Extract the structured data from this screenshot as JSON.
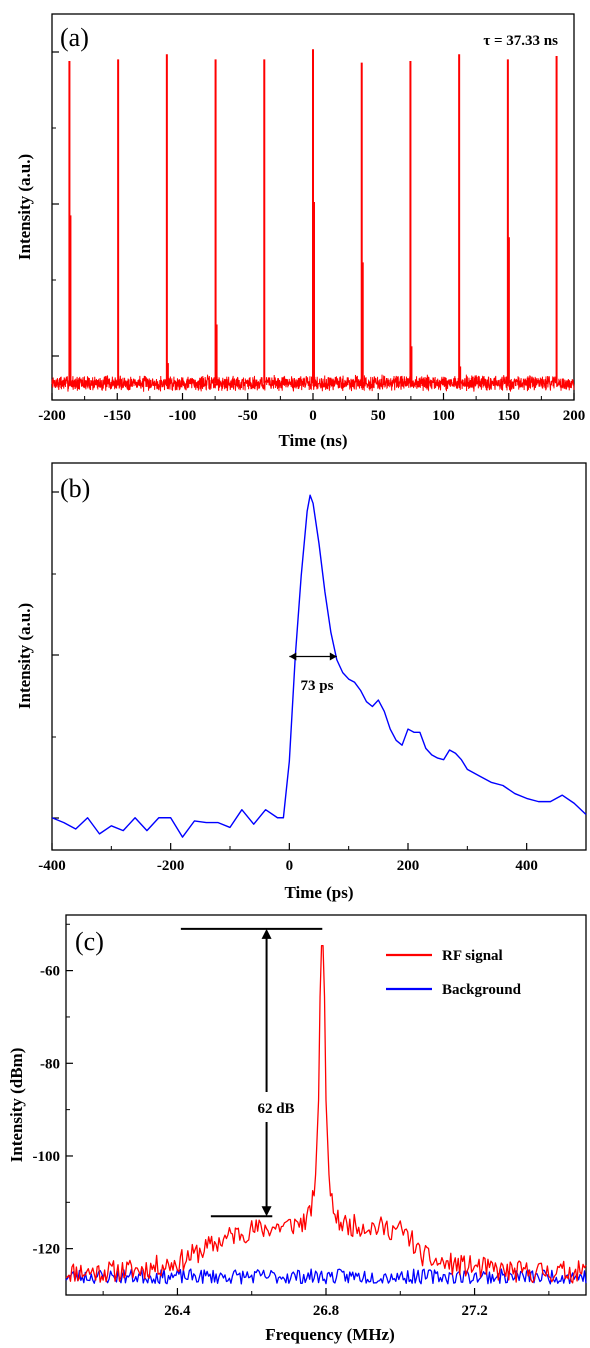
{
  "colors": {
    "red": "#ff0000",
    "blue": "#0000ff",
    "axis": "#000000"
  },
  "chart_data": [
    {
      "panel": "(a)",
      "type": "line",
      "xlabel": "Time (ns)",
      "ylabel": "Intensity (a.u.)",
      "xlim": [
        -200,
        200
      ],
      "ylim": [
        -0.1,
        2.2
      ],
      "xticks": [
        -200,
        -150,
        -100,
        -50,
        0,
        50,
        100,
        150,
        200
      ],
      "annotation": "τ = 37.33 ns",
      "period_ns": 37.33,
      "noise_level": 0.035,
      "series": [
        {
          "color": "#ff0000",
          "pulse_times_ns": [
            -186.65,
            -149.32,
            -111.99,
            -74.66,
            -37.33,
            0,
            37.33,
            74.66,
            111.99,
            149.32,
            186.65
          ],
          "pulse_peaks": [
            1.92,
            1.93,
            1.96,
            1.93,
            1.93,
            1.99,
            1.91,
            1.92,
            1.96,
            1.93,
            1.95
          ],
          "satellite_peaks": [
            1.0,
            0.03,
            0.12,
            0.35,
            0.02,
            1.08,
            0.72,
            0.22,
            0.1,
            0.87,
            0.03
          ]
        }
      ]
    },
    {
      "panel": "(b)",
      "type": "line",
      "xlabel": "Time (ps)",
      "ylabel": "Intensity (a.u.)",
      "xlim": [
        -400,
        500
      ],
      "ylim": [
        -0.2,
        2.2
      ],
      "xticks": [
        -400,
        -200,
        0,
        200,
        400
      ],
      "annotation": "73 ps",
      "fwhm_ps": 73,
      "fwhm_marker": {
        "x_from": 0,
        "x_to": 80,
        "y": 1.0
      },
      "series": [
        {
          "color": "#0000ff",
          "x": [
            -400,
            -380,
            -360,
            -340,
            -320,
            -300,
            -280,
            -260,
            -240,
            -220,
            -200,
            -180,
            -160,
            -140,
            -120,
            -100,
            -80,
            -60,
            -40,
            -20,
            -10,
            0,
            10,
            20,
            30,
            35,
            40,
            50,
            60,
            70,
            80,
            90,
            100,
            110,
            120,
            130,
            140,
            150,
            160,
            170,
            180,
            190,
            200,
            210,
            220,
            230,
            240,
            250,
            260,
            270,
            280,
            290,
            300,
            320,
            340,
            360,
            380,
            400,
            420,
            440,
            460,
            480,
            500
          ],
          "y": [
            0.0,
            -0.03,
            -0.07,
            0.0,
            -0.1,
            -0.05,
            -0.08,
            0.0,
            -0.08,
            0.0,
            0.0,
            -0.12,
            -0.02,
            -0.03,
            -0.03,
            -0.06,
            0.05,
            -0.04,
            0.05,
            0.0,
            0.0,
            0.35,
            1.0,
            1.5,
            1.9,
            2.0,
            1.95,
            1.7,
            1.4,
            1.15,
            0.98,
            0.9,
            0.86,
            0.84,
            0.79,
            0.72,
            0.69,
            0.73,
            0.66,
            0.55,
            0.48,
            0.45,
            0.55,
            0.53,
            0.53,
            0.43,
            0.39,
            0.37,
            0.36,
            0.42,
            0.4,
            0.36,
            0.3,
            0.26,
            0.22,
            0.2,
            0.15,
            0.12,
            0.1,
            0.1,
            0.14,
            0.09,
            0.02
          ]
        }
      ]
    },
    {
      "panel": "(c)",
      "type": "line",
      "xlabel": "Frequency (MHz)",
      "ylabel": "Intensity (dBm)",
      "xlim": [
        26.1,
        27.5
      ],
      "ylim": [
        -130,
        -48
      ],
      "xticks": [
        26.4,
        26.8,
        27.2
      ],
      "yticks": [
        -120,
        -100,
        -80,
        -60
      ],
      "annotation": "62 dB",
      "marker": {
        "top_dbm": -51,
        "bottom_dbm": -113,
        "x_mhz": 26.64,
        "line_from_mhz": 26.49,
        "line_to_mhz": 26.79
      },
      "legend": "top-right",
      "series": [
        {
          "name": "RF signal",
          "color": "#ff0000",
          "x": [
            26.1,
            26.2,
            26.3,
            26.4,
            26.5,
            26.55,
            26.6,
            26.7,
            26.75,
            26.77,
            26.78,
            26.785,
            26.79,
            26.795,
            26.8,
            26.81,
            26.83,
            26.86,
            26.9,
            27.0,
            27.03,
            27.05,
            27.1,
            27.2,
            27.3,
            27.4,
            27.5
          ],
          "y": [
            -125,
            -125,
            -124.5,
            -123,
            -119,
            -117,
            -116,
            -115,
            -114,
            -108,
            -88,
            -60,
            -51,
            -60,
            -88,
            -108,
            -114,
            -115,
            -115,
            -116,
            -118,
            -121,
            -123,
            -124,
            -125,
            -125,
            -125
          ],
          "noise_db": 2.4
        },
        {
          "name": "Background",
          "color": "#0000ff",
          "x": [
            26.1,
            27.5
          ],
          "y": [
            -126,
            -126
          ],
          "noise_db": 1.6
        }
      ]
    }
  ]
}
